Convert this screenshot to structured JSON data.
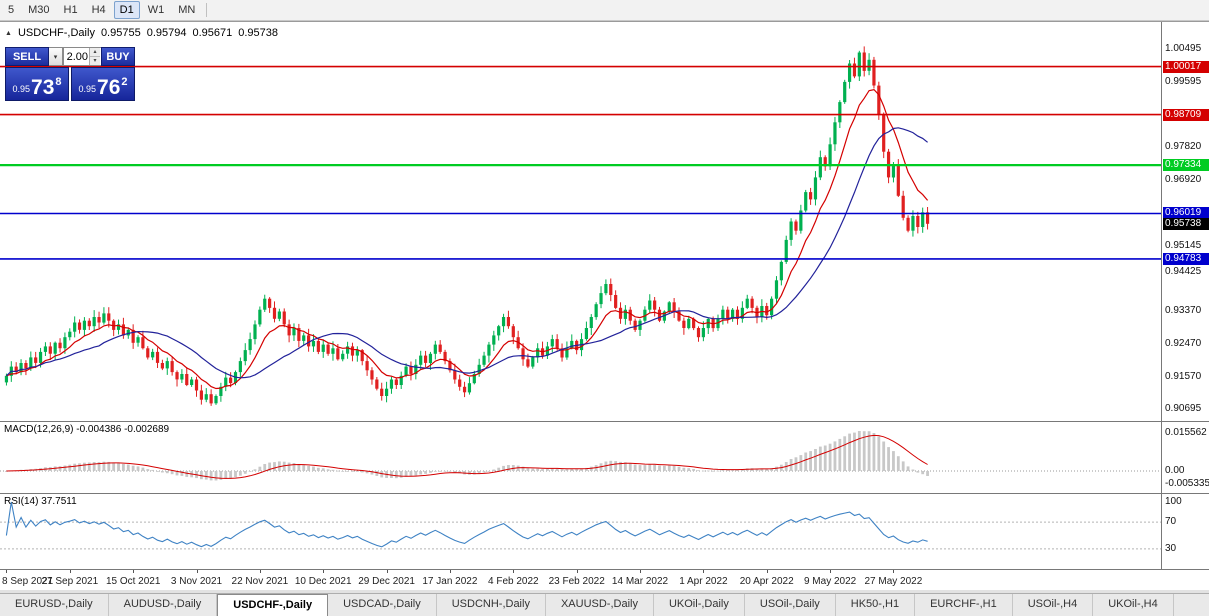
{
  "toolbar": {
    "timeframes": [
      "5",
      "M30",
      "H1",
      "H4",
      "D1",
      "W1",
      "MN"
    ],
    "active": "D1"
  },
  "chart_header": {
    "symbol": "USDCHF-,Daily",
    "open": "0.95755",
    "high": "0.95794",
    "low": "0.95671",
    "close": "0.95738"
  },
  "icons": {
    "collapse": "▲",
    "chevron_down": "▾",
    "spin_up": "▴",
    "spin_down": "▾"
  },
  "trade_panel": {
    "sell_label": "SELL",
    "buy_label": "BUY",
    "volume": "2.00",
    "sell_price": {
      "small": "0.95",
      "big": "73",
      "sup": "8"
    },
    "buy_price": {
      "small": "0.95",
      "big": "76",
      "sup": "2"
    }
  },
  "colors": {
    "bull": "#00B050",
    "bear": "#E02020",
    "ma_fast": "#D40000",
    "ma_slow": "#22229A",
    "macd_hist": "#C8C8C8",
    "macd_signal": "#D40000",
    "rsi_line": "#3E82C4",
    "accent_blue": "#1C2D9E"
  },
  "chart_data": [
    {
      "type": "candlestick",
      "title": "USDCHF-,Daily",
      "x_labels": [
        "8 Sep 2021",
        "27 Sep 2021",
        "15 Oct 2021",
        "3 Nov 2021",
        "22 Nov 2021",
        "10 Dec 2021",
        "29 Dec 2021",
        "17 Jan 2022",
        "4 Feb 2022",
        "23 Feb 2022",
        "14 Mar 2022",
        "1 Apr 2022",
        "20 Apr 2022",
        "9 May 2022",
        "27 May 2022"
      ],
      "bars_per_label": 13,
      "price_range": [
        0.9037,
        1.0123
      ],
      "y_ticks": [
        "1.00495",
        "0.99595",
        "0.97820",
        "0.96920",
        "0.95145",
        "0.94425",
        "0.93370",
        "0.92470",
        "0.91570",
        "0.90695"
      ],
      "closes": [
        0.916,
        0.9185,
        0.917,
        0.9195,
        0.918,
        0.921,
        0.9195,
        0.9225,
        0.924,
        0.922,
        0.925,
        0.9235,
        0.9265,
        0.928,
        0.9305,
        0.9285,
        0.931,
        0.9295,
        0.932,
        0.9305,
        0.933,
        0.931,
        0.9285,
        0.93,
        0.927,
        0.9285,
        0.925,
        0.9265,
        0.9235,
        0.921,
        0.9225,
        0.9195,
        0.918,
        0.92,
        0.917,
        0.915,
        0.9165,
        0.9135,
        0.915,
        0.912,
        0.9095,
        0.911,
        0.9085,
        0.9105,
        0.913,
        0.9155,
        0.914,
        0.917,
        0.92,
        0.923,
        0.926,
        0.93,
        0.934,
        0.937,
        0.9345,
        0.9315,
        0.9335,
        0.93,
        0.927,
        0.929,
        0.9255,
        0.927,
        0.924,
        0.9255,
        0.9225,
        0.9245,
        0.922,
        0.9235,
        0.9205,
        0.922,
        0.924,
        0.9215,
        0.923,
        0.92,
        0.9175,
        0.915,
        0.9125,
        0.9105,
        0.9125,
        0.915,
        0.9135,
        0.916,
        0.9185,
        0.9165,
        0.919,
        0.9215,
        0.9195,
        0.922,
        0.9245,
        0.9225,
        0.92,
        0.9175,
        0.915,
        0.913,
        0.9115,
        0.914,
        0.9165,
        0.919,
        0.9215,
        0.9245,
        0.927,
        0.9295,
        0.932,
        0.9295,
        0.9265,
        0.9235,
        0.9205,
        0.9185,
        0.921,
        0.9235,
        0.9215,
        0.924,
        0.926,
        0.9235,
        0.921,
        0.9235,
        0.9255,
        0.923,
        0.926,
        0.929,
        0.932,
        0.9355,
        0.9385,
        0.941,
        0.938,
        0.9345,
        0.9315,
        0.934,
        0.931,
        0.9285,
        0.931,
        0.934,
        0.9365,
        0.934,
        0.931,
        0.9335,
        0.936,
        0.9335,
        0.931,
        0.929,
        0.9315,
        0.929,
        0.9265,
        0.929,
        0.9315,
        0.929,
        0.9315,
        0.934,
        0.9315,
        0.934,
        0.9315,
        0.9345,
        0.937,
        0.9345,
        0.932,
        0.935,
        0.9325,
        0.937,
        0.942,
        0.947,
        0.953,
        0.958,
        0.9555,
        0.961,
        0.966,
        0.964,
        0.97,
        0.9755,
        0.973,
        0.979,
        0.985,
        0.9905,
        0.996,
        1.001,
        0.9975,
        1.004,
        0.999,
        1.002,
        0.995,
        0.987,
        0.977,
        0.97,
        0.9735,
        0.965,
        0.959,
        0.9555,
        0.9595,
        0.9565,
        0.9605,
        0.95738
      ],
      "overlays": {
        "ma_fast_period": 9,
        "ma_slow_period": 20
      },
      "hlines": [
        {
          "price": 1.00017,
          "label": "1.00017",
          "color": "#D40000",
          "w": 1.6
        },
        {
          "price": 0.98709,
          "label": "0.98709",
          "color": "#D40000",
          "w": 1.6
        },
        {
          "price": 0.97334,
          "label": "0.97334",
          "color": "#00CC22",
          "w": 2.2
        },
        {
          "price": 0.96019,
          "label": "0.96019",
          "color": "#0000CD",
          "w": 1.6
        },
        {
          "price": 0.94783,
          "label": "0.94783",
          "color": "#0000CD",
          "w": 1.6
        }
      ],
      "current_price": {
        "price": 0.95738,
        "label": "0.95738",
        "color": "#000000"
      }
    },
    {
      "type": "macd",
      "label": "MACD(12,26,9)",
      "values_text": "-0.004386 -0.002689",
      "fast": 12,
      "slow": 26,
      "signal": 9,
      "range": [
        -0.009,
        0.02
      ],
      "axis_labels": [
        {
          "text": "0.015562",
          "value": 0.015562
        },
        {
          "text": "0.00",
          "value": 0
        },
        {
          "text": "-0.005335",
          "value": -0.005335
        }
      ]
    },
    {
      "type": "rsi",
      "label": "RSI(14)",
      "value_text": "37.7511",
      "period": 14,
      "scale": [
        0,
        112
      ],
      "levels": [
        70,
        30
      ],
      "axis_labels": [
        {
          "text": "100",
          "value": 100
        },
        {
          "text": "70",
          "value": 70
        },
        {
          "text": "30",
          "value": 30
        }
      ]
    }
  ],
  "bottom_tabs": {
    "items": [
      "EURUSD-,Daily",
      "AUDUSD-,Daily",
      "USDCHF-,Daily",
      "USDCAD-,Daily",
      "USDCNH-,Daily",
      "XAUUSD-,Daily",
      "UKOil-,Daily",
      "USOil-,Daily",
      "HK50-,H1",
      "EURCHF-,H1",
      "USOil-,H4",
      "UKOil-,H4"
    ],
    "active_index": 2
  }
}
